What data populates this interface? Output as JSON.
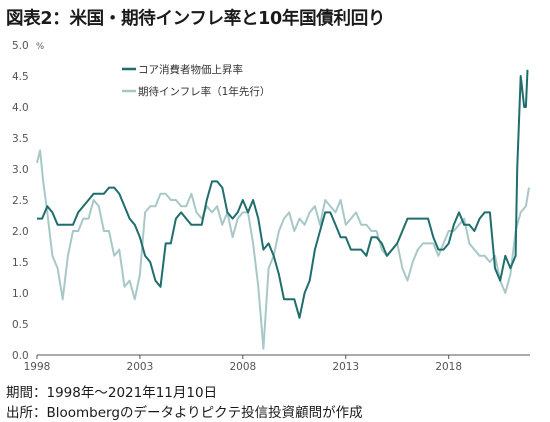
{
  "title": "図表2：米国・期待インフレ率と10年国債利回り",
  "notes": {
    "period": "期間：1998年～2021年11月10日",
    "source": "出所：Bloombergのデータよりピクテ投信投資顧問が作成"
  },
  "chart_data": {
    "type": "line",
    "ylabel": "%",
    "ylim": [
      0.0,
      5.0
    ],
    "yticks": [
      "0.0",
      "0.5",
      "1.0",
      "1.5",
      "2.0",
      "2.5",
      "3.0",
      "3.5",
      "4.0",
      "4.5",
      "5.0"
    ],
    "xlim": [
      1998.0,
      2021.95
    ],
    "xticks": [
      "1998",
      "2003",
      "2008",
      "2013",
      "2018"
    ],
    "grid": false,
    "legend_position": "top-left",
    "colors": {
      "cpi": "#1f6d6d",
      "breakeven": "#a8c8c8"
    },
    "series": [
      {
        "name": "コア消費者物価上昇率",
        "color": "#1f6d6d",
        "x": [
          1998.0,
          1998.25,
          1998.5,
          1998.75,
          1999.0,
          1999.25,
          1999.5,
          1999.75,
          2000.0,
          2000.25,
          2000.5,
          2000.75,
          2001.0,
          2001.25,
          2001.5,
          2001.75,
          2002.0,
          2002.25,
          2002.5,
          2002.75,
          2003.0,
          2003.25,
          2003.5,
          2003.75,
          2004.0,
          2004.25,
          2004.5,
          2004.75,
          2005.0,
          2005.25,
          2005.5,
          2005.75,
          2006.0,
          2006.25,
          2006.5,
          2006.75,
          2007.0,
          2007.25,
          2007.5,
          2007.75,
          2008.0,
          2008.25,
          2008.5,
          2008.75,
          2009.0,
          2009.25,
          2009.5,
          2009.75,
          2010.0,
          2010.25,
          2010.5,
          2010.75,
          2011.0,
          2011.25,
          2011.5,
          2011.75,
          2012.0,
          2012.25,
          2012.5,
          2012.75,
          2013.0,
          2013.25,
          2013.5,
          2013.75,
          2014.0,
          2014.25,
          2014.5,
          2014.75,
          2015.0,
          2015.25,
          2015.5,
          2015.75,
          2016.0,
          2016.25,
          2016.5,
          2016.75,
          2017.0,
          2017.25,
          2017.5,
          2017.75,
          2018.0,
          2018.25,
          2018.5,
          2018.75,
          2019.0,
          2019.25,
          2019.5,
          2019.75,
          2020.0,
          2020.25,
          2020.5,
          2020.75,
          2021.0,
          2021.25,
          2021.33,
          2021.5,
          2021.67,
          2021.75,
          2021.83
        ],
        "values": [
          2.2,
          2.2,
          2.4,
          2.3,
          2.1,
          2.1,
          2.1,
          2.1,
          2.3,
          2.4,
          2.5,
          2.6,
          2.6,
          2.6,
          2.7,
          2.7,
          2.6,
          2.4,
          2.2,
          2.1,
          1.9,
          1.6,
          1.5,
          1.2,
          1.1,
          1.8,
          1.8,
          2.2,
          2.3,
          2.2,
          2.1,
          2.1,
          2.1,
          2.5,
          2.8,
          2.8,
          2.7,
          2.3,
          2.2,
          2.3,
          2.5,
          2.3,
          2.5,
          2.2,
          1.7,
          1.8,
          1.6,
          1.3,
          0.9,
          0.9,
          0.9,
          0.6,
          1.0,
          1.2,
          1.7,
          2.0,
          2.3,
          2.3,
          2.1,
          1.9,
          1.9,
          1.7,
          1.7,
          1.7,
          1.6,
          1.9,
          1.9,
          1.8,
          1.6,
          1.7,
          1.8,
          2.0,
          2.2,
          2.2,
          2.2,
          2.2,
          2.2,
          1.9,
          1.7,
          1.7,
          1.8,
          2.1,
          2.3,
          2.1,
          2.1,
          2.0,
          2.2,
          2.3,
          2.3,
          1.4,
          1.2,
          1.6,
          1.4,
          1.6,
          3.0,
          4.5,
          4.0,
          4.0,
          4.6
        ]
      },
      {
        "name": "期待インフレ率（1年先行）",
        "color": "#a8c8c8",
        "x": [
          1998.0,
          1998.15,
          1998.3,
          1998.5,
          1998.75,
          1999.0,
          1999.25,
          1999.5,
          1999.75,
          2000.0,
          2000.25,
          2000.5,
          2000.75,
          2001.0,
          2001.25,
          2001.5,
          2001.75,
          2002.0,
          2002.25,
          2002.5,
          2002.75,
          2003.0,
          2003.25,
          2003.5,
          2003.75,
          2004.0,
          2004.25,
          2004.5,
          2004.75,
          2005.0,
          2005.25,
          2005.5,
          2005.75,
          2006.0,
          2006.25,
          2006.5,
          2006.75,
          2007.0,
          2007.25,
          2007.5,
          2007.75,
          2008.0,
          2008.25,
          2008.5,
          2008.75,
          2008.9,
          2009.0,
          2009.25,
          2009.5,
          2009.75,
          2010.0,
          2010.25,
          2010.5,
          2010.75,
          2011.0,
          2011.25,
          2011.5,
          2011.75,
          2012.0,
          2012.25,
          2012.5,
          2012.75,
          2013.0,
          2013.25,
          2013.5,
          2013.75,
          2014.0,
          2014.25,
          2014.5,
          2014.75,
          2015.0,
          2015.25,
          2015.5,
          2015.75,
          2016.0,
          2016.25,
          2016.5,
          2016.75,
          2017.0,
          2017.25,
          2017.5,
          2017.75,
          2018.0,
          2018.25,
          2018.5,
          2018.75,
          2019.0,
          2019.25,
          2019.5,
          2019.75,
          2020.0,
          2020.25,
          2020.5,
          2020.75,
          2021.0,
          2021.25,
          2021.5,
          2021.75,
          2021.9
        ],
        "values": [
          3.1,
          3.3,
          2.8,
          2.3,
          1.6,
          1.4,
          0.9,
          1.6,
          2.0,
          2.0,
          2.2,
          2.2,
          2.5,
          2.4,
          2.0,
          2.0,
          1.6,
          1.7,
          1.1,
          1.2,
          0.9,
          1.3,
          2.3,
          2.4,
          2.4,
          2.6,
          2.6,
          2.5,
          2.5,
          2.4,
          2.4,
          2.6,
          2.3,
          2.2,
          2.4,
          2.3,
          2.4,
          2.1,
          2.3,
          1.9,
          2.2,
          2.3,
          2.3,
          1.8,
          1.1,
          0.5,
          0.1,
          1.4,
          1.6,
          2.0,
          2.2,
          2.3,
          2.0,
          2.2,
          2.1,
          2.3,
          2.4,
          2.1,
          2.5,
          2.4,
          2.3,
          2.5,
          2.1,
          2.2,
          2.3,
          2.1,
          2.1,
          2.0,
          2.0,
          1.7,
          1.6,
          1.7,
          1.8,
          1.4,
          1.2,
          1.5,
          1.7,
          1.8,
          1.8,
          1.8,
          1.6,
          1.8,
          2.0,
          2.0,
          2.1,
          2.2,
          1.8,
          1.7,
          1.6,
          1.6,
          1.5,
          1.6,
          1.2,
          1.0,
          1.3,
          2.0,
          2.3,
          2.4,
          2.7
        ]
      }
    ]
  }
}
